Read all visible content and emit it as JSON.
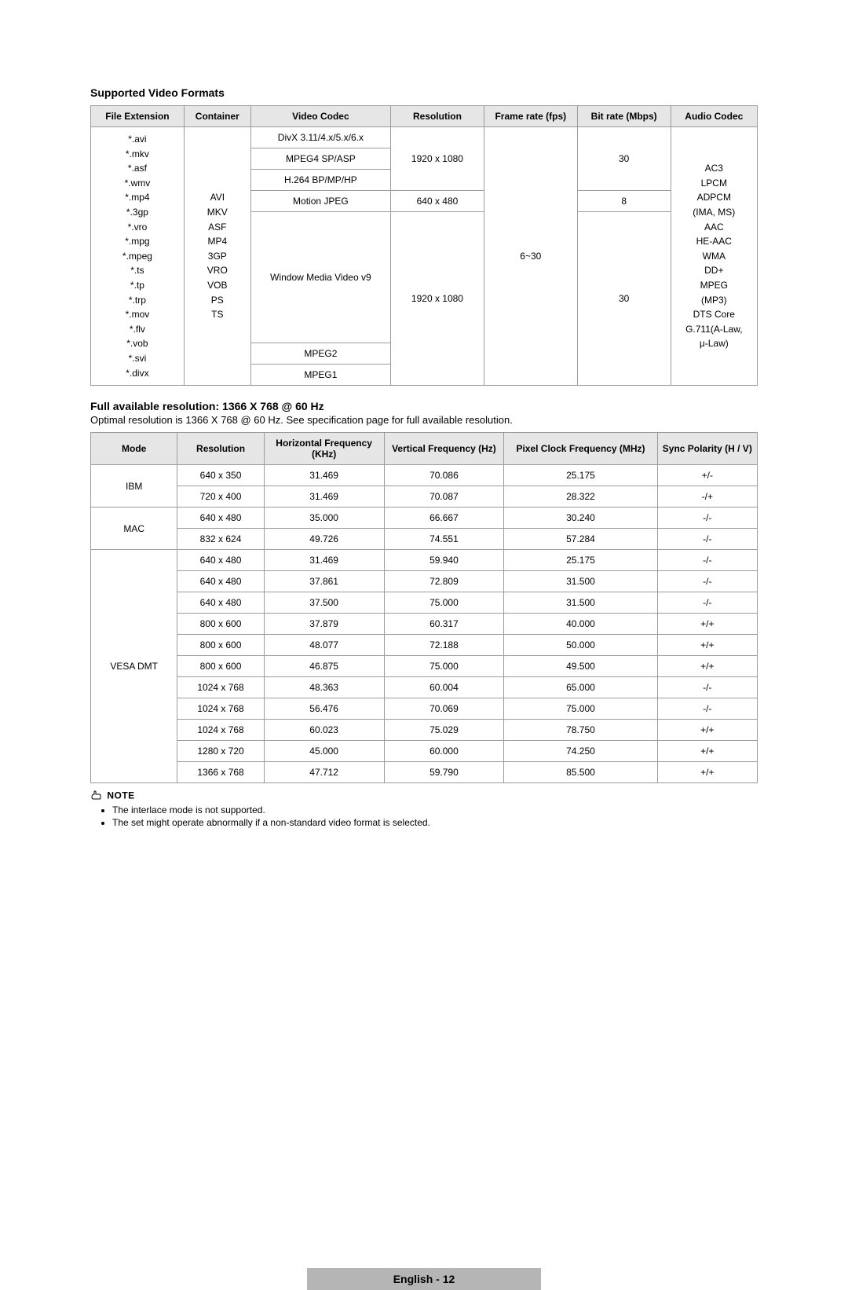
{
  "section1": {
    "title": "Supported Video Formats",
    "headers": [
      "File Extension",
      "Container",
      "Video Codec",
      "Resolution",
      "Frame rate (fps)",
      "Bit rate (Mbps)",
      "Audio Codec"
    ],
    "fileExtensions": "*.avi\n*.mkv\n*.asf\n*.wmv\n*.mp4\n*.3gp\n*.vro\n*.mpg\n*.mpeg\n*.ts\n*.tp\n*.trp\n*.mov\n*.flv\n*.vob\n*.svi\n*.divx",
    "container": "AVI\nMKV\nASF\nMP4\n3GP\nVRO\nVOB\nPS\nTS",
    "rows": [
      {
        "codec": "DivX 3.11/4.x/5.x/6.x",
        "res": "",
        "fps": "",
        "bit": ""
      },
      {
        "codec": "MPEG4 SP/ASP",
        "res": "1920 x 1080",
        "fps": "",
        "bit": "30"
      },
      {
        "codec": "H.264 BP/MP/HP",
        "res": "",
        "fps": "",
        "bit": ""
      },
      {
        "codec": "Motion JPEG",
        "res": "640 x 480",
        "fps": "6~30",
        "bit": "8"
      },
      {
        "codec": "Window Media Video v9",
        "res": "",
        "fps": "",
        "bit": ""
      },
      {
        "codec": "MPEG2",
        "res": "1920 x 1080",
        "fps": "",
        "bit": "30"
      },
      {
        "codec": "MPEG1",
        "res": "",
        "fps": "",
        "bit": ""
      }
    ],
    "audioCodec": "AC3\nLPCM\nADPCM\n(IMA, MS)\nAAC\nHE-AAC\nWMA\nDD+\nMPEG\n(MP3)\nDTS Core\nG.711(A-Law,\nμ-Law)"
  },
  "section2": {
    "title": "Full available resolution: 1366 X 768 @ 60 Hz",
    "desc": "Optimal resolution is 1366 X 768 @ 60 Hz. See specification page for full available resolution.",
    "headers": [
      "Mode",
      "Resolution",
      "Horizontal Frequency (KHz)",
      "Vertical Frequency (Hz)",
      "Pixel Clock Frequency (MHz)",
      "Sync Polarity (H / V)"
    ],
    "groups": [
      {
        "mode": "IBM",
        "rows": [
          [
            "640 x 350",
            "31.469",
            "70.086",
            "25.175",
            "+/-"
          ],
          [
            "720 x 400",
            "31.469",
            "70.087",
            "28.322",
            "-/+"
          ]
        ]
      },
      {
        "mode": "MAC",
        "rows": [
          [
            "640 x 480",
            "35.000",
            "66.667",
            "30.240",
            "-/-"
          ],
          [
            "832 x 624",
            "49.726",
            "74.551",
            "57.284",
            "-/-"
          ]
        ]
      },
      {
        "mode": "VESA DMT",
        "rows": [
          [
            "640 x 480",
            "31.469",
            "59.940",
            "25.175",
            "-/-"
          ],
          [
            "640 x 480",
            "37.861",
            "72.809",
            "31.500",
            "-/-"
          ],
          [
            "640 x 480",
            "37.500",
            "75.000",
            "31.500",
            "-/-"
          ],
          [
            "800 x 600",
            "37.879",
            "60.317",
            "40.000",
            "+/+"
          ],
          [
            "800 x 600",
            "48.077",
            "72.188",
            "50.000",
            "+/+"
          ],
          [
            "800 x 600",
            "46.875",
            "75.000",
            "49.500",
            "+/+"
          ],
          [
            "1024 x 768",
            "48.363",
            "60.004",
            "65.000",
            "-/-"
          ],
          [
            "1024 x 768",
            "56.476",
            "70.069",
            "75.000",
            "-/-"
          ],
          [
            "1024 x 768",
            "60.023",
            "75.029",
            "78.750",
            "+/+"
          ],
          [
            "1280 x 720",
            "45.000",
            "60.000",
            "74.250",
            "+/+"
          ],
          [
            "1366 x 768",
            "47.712",
            "59.790",
            "85.500",
            "+/+"
          ]
        ]
      }
    ]
  },
  "note": {
    "label": "NOTE",
    "items": [
      "The interlace mode is not supported.",
      "The set might operate abnormally if a non-standard video format is selected."
    ]
  },
  "footer": {
    "text": "English - 12"
  },
  "colWidths1": [
    "14%",
    "10%",
    "21%",
    "14%",
    "14%",
    "14%",
    "13%"
  ],
  "colWidths2": [
    "13%",
    "13%",
    "18%",
    "18%",
    "23%",
    "15%"
  ]
}
